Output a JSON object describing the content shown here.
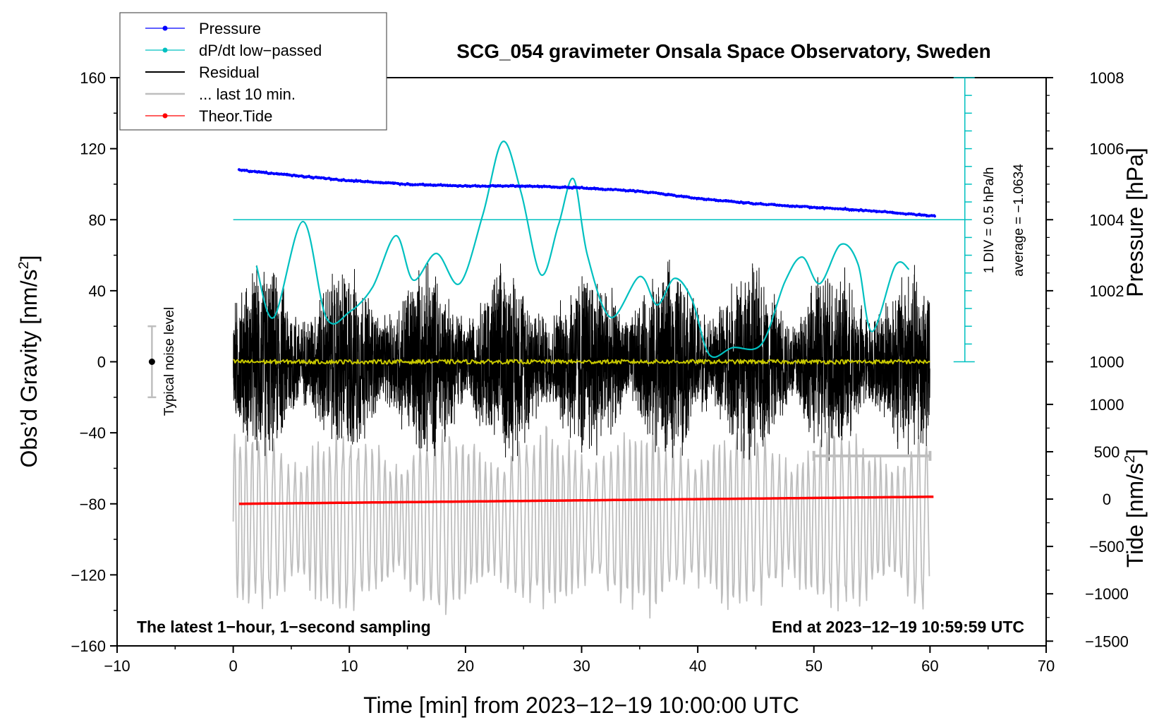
{
  "chart_data": {
    "type": "line",
    "title": "SCG_054 gravimeter Onsala Space Observatory, Sweden",
    "xlabel": "Time [min] from 2023−12−19 10:00:00 UTC",
    "ylabel_main": "Obs’d Gravity [nm/s",
    "ylabel_main_sup": "2",
    "ylabel_main_tail": "]",
    "ylabel_pressure": "Pressure [hPa]",
    "ylabel_tide": "Tide [nm/s",
    "ylabel_tide_sup": "2",
    "ylabel_tide_tail": "]",
    "xlim": [
      -10,
      70
    ],
    "ylim": [
      -160,
      160
    ],
    "x_ticks": [
      -10,
      0,
      10,
      20,
      30,
      40,
      50,
      60,
      70
    ],
    "x_tick_labels": [
      "−10",
      "0",
      "10",
      "20",
      "30",
      "40",
      "50",
      "60",
      "70"
    ],
    "y_ticks": [
      -160,
      -120,
      -80,
      -40,
      0,
      40,
      80,
      120,
      160
    ],
    "y_tick_labels": [
      "−160",
      "−120",
      "−80",
      "−40",
      "0",
      "40",
      "80",
      "120",
      "160"
    ],
    "pressure_ticks": [
      1000,
      1002,
      1004,
      1006,
      1008
    ],
    "pressure_tick_labels": [
      "1000",
      "1002",
      "1004",
      "1006",
      "1008"
    ],
    "pressure_axis_map": {
      "p_at_main_y80": 1004,
      "hpa_per_main_unit": 0.05
    },
    "tide_ticks": [
      -1500,
      -1000,
      -500,
      0,
      500,
      1000
    ],
    "tide_tick_labels": [
      "−1500",
      "−1000",
      "−500",
      "0",
      "500",
      "1000"
    ],
    "tide_axis_map": {
      "tide_at_main_y0": 1450,
      "nms2_per_main_unit": 18.75
    },
    "legend": [
      {
        "label": "Pressure",
        "color": "#0000ff",
        "marker": "dot"
      },
      {
        "label": "dP/dt low−passed",
        "color": "#00c0c0",
        "marker": "dot"
      },
      {
        "label": "Residual",
        "color": "#000000",
        "marker": "none"
      },
      {
        "label": "... last 10 min.",
        "color": "#bebebe",
        "marker": "none"
      },
      {
        "label": "Theor.Tide",
        "color": "#ff0000",
        "marker": "dot"
      }
    ],
    "legend_position": "top-left",
    "series": [
      {
        "name": "Pressure",
        "axis": "pressure",
        "color": "#0000ff",
        "x": [
          0.5,
          5,
          10,
          15,
          20,
          25,
          30,
          35,
          40,
          45,
          50,
          55,
          60.5
        ],
        "y": [
          1005.4,
          1005.25,
          1005.1,
          1005.0,
          1004.95,
          1004.95,
          1004.9,
          1004.8,
          1004.6,
          1004.45,
          1004.35,
          1004.25,
          1004.1
        ]
      },
      {
        "name": "dP/dt low−passed",
        "axis": "main",
        "color": "#00c0c0",
        "x": [
          2,
          3.5,
          6,
          8,
          10,
          12,
          14,
          15.5,
          17.5,
          19.5,
          21.5,
          23.2,
          24.8,
          26.5,
          28,
          29.3,
          30.5,
          32.5,
          35,
          36.5,
          38,
          39.5,
          41,
          43,
          45.5,
          47.5,
          49,
          50.5,
          52.3,
          53.8,
          55,
          57,
          58.2
        ],
        "y": [
          54,
          25,
          79,
          25,
          28,
          42,
          71,
          46,
          61,
          44,
          83,
          124,
          95,
          49,
          77,
          103,
          60,
          25,
          48,
          32,
          47,
          35,
          4,
          8,
          10,
          45,
          59,
          44,
          66,
          55,
          17,
          54,
          52
        ]
      },
      {
        "name": "Residual",
        "axis": "main",
        "color": "#000000",
        "x_range": [
          0,
          60
        ],
        "amplitude": 60
      },
      {
        "name": "low-passed residual",
        "axis": "main",
        "color": "#c8c800",
        "x_range": [
          0,
          60
        ],
        "level": 0
      },
      {
        "name": "... last 10 min.",
        "axis": "main",
        "color": "#bebebe",
        "x_range": [
          0,
          60
        ],
        "center": -90,
        "amplitude": 60
      },
      {
        "name": "Theor.Tide",
        "axis": "tide",
        "color": "#ff0000",
        "x": [
          0.5,
          60.5
        ],
        "y": [
          -50,
          25
        ]
      }
    ],
    "reference_lines": [
      {
        "name": "average dP/dt line",
        "axis": "main",
        "y": 80,
        "x_range": [
          0,
          63
        ],
        "color": "#00c0c0"
      }
    ],
    "scale_bar": {
      "label": "1 DIV = 0.5 hPa/h",
      "x": 63,
      "y_range": [
        0,
        160
      ],
      "divisions": 16,
      "color": "#00c0c0"
    },
    "average_text": "average = −1.0634",
    "noise_level": {
      "label": "Typical noise level",
      "x": -7,
      "center": 0,
      "half_range": 20
    },
    "grey_bar": {
      "x_range": [
        50,
        60
      ],
      "y": -53
    },
    "footer_left": "The latest 1−hour, 1−second sampling",
    "footer_right": "End at 2023−12−19 10:59:59 UTC"
  }
}
